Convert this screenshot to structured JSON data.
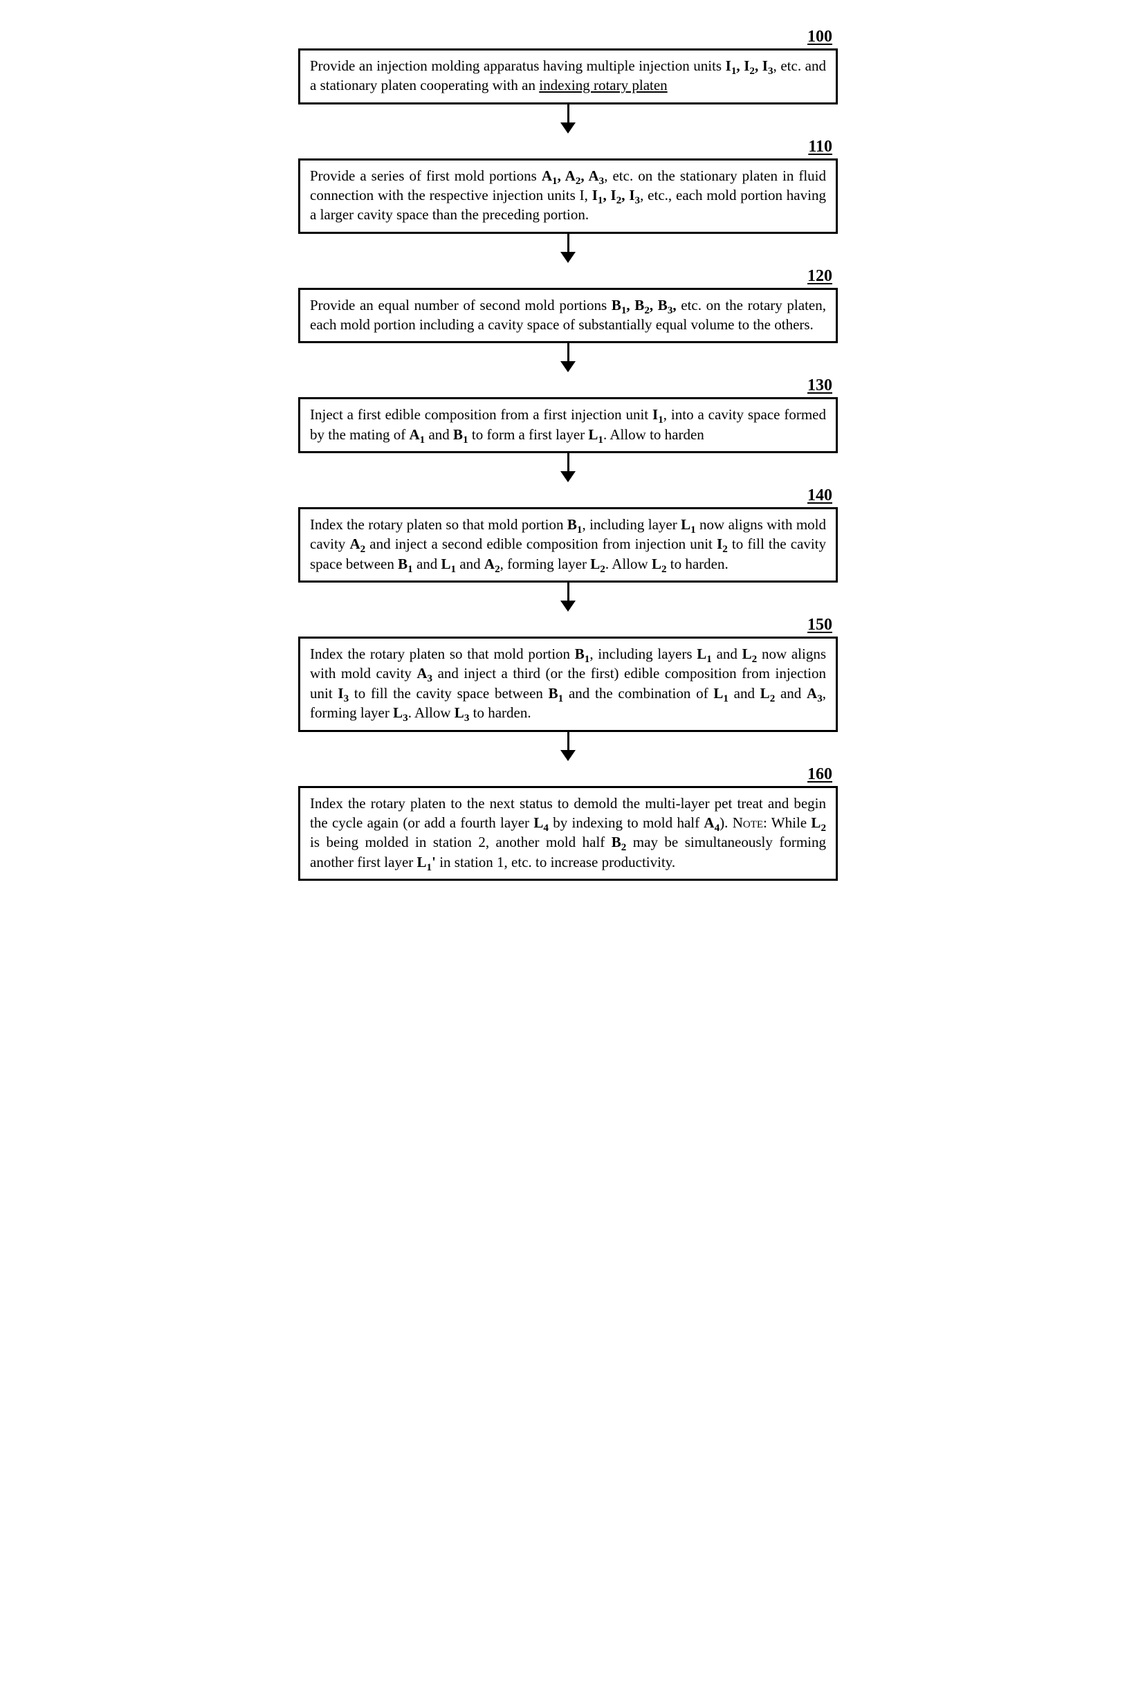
{
  "type": "flowchart",
  "node_border_color": "#000000",
  "node_border_width": 3,
  "background_color": "#ffffff",
  "font_family": "Times New Roman / serif",
  "body_fontsize_pt": 16,
  "label_fontsize_pt": 18,
  "label_weight": "bold",
  "label_underline": true,
  "arrow_color": "#000000",
  "steps": [
    {
      "id": "100",
      "label": "100",
      "html": "Provide an injection molding apparatus having multiple injection units <b>I<sub>1</sub>, I<sub>2</sub>, I<sub>3</sub></b>, etc. and a stationary platen cooperating with an <u>indexing rotary platen</u>"
    },
    {
      "id": "110",
      "label": "110",
      "html": "Provide a series of first mold portions <b>A<sub>1</sub>, A<sub>2</sub>, A<sub>3</sub></b>, etc. on the stationary platen in fluid connection with the respective injection units I, <b>I<sub>1</sub>, I<sub>2</sub>, I<sub>3</sub></b>, etc., each mold portion having a larger cavity space than the preceding portion."
    },
    {
      "id": "120",
      "label": "120",
      "html": "Provide an equal number of second mold portions <b>B<sub>1</sub>, B<sub>2</sub>, B<sub>3</sub>,</b> etc. on the rotary platen, each mold portion including a cavity space of substantially equal volume to the others."
    },
    {
      "id": "130",
      "label": "130",
      "html": "Inject a first edible composition from a first injection unit <b>I<sub>1</sub></b>, into a cavity space formed by the mating of <b>A<sub>1</sub></b> and <b>B<sub>1</sub></b> to form a first layer <b>L<sub>1</sub></b>. Allow to harden"
    },
    {
      "id": "140",
      "label": "140",
      "html": "Index the rotary platen so that mold portion <b>B<sub>1</sub></b>, including layer <b>L<sub>1</sub></b> now aligns with mold cavity <b>A<sub>2</sub></b> and inject a second edible composition from injection unit <b>I<sub>2</sub></b> to fill the cavity space between <b>B<sub>1</sub></b> and <b>L<sub>1</sub></b> and <b>A<sub>2</sub></b>, forming layer <b>L<sub>2</sub></b>. Allow <b>L<sub>2</sub></b> to harden."
    },
    {
      "id": "150",
      "label": "150",
      "html": "Index the rotary platen so that mold portion <b>B<sub>1</sub></b>, including layers <b>L<sub>1</sub></b> and <b>L<sub>2</sub></b> now aligns with mold cavity <b>A<sub>3</sub></b> and inject a third (or the first) edible composition from injection unit <b>I<sub>3</sub></b> to fill the cavity space between <b>B<sub>1</sub></b> and the combination of <b>L<sub>1</sub></b> and <b>L<sub>2</sub></b> and <b>A<sub>3</sub></b>, forming layer <b>L<sub>3</sub></b>. Allow <b>L<sub>3</sub></b> to harden."
    },
    {
      "id": "160",
      "label": "160",
      "html": "Index the rotary platen to the next status to demold the multi-layer pet treat and begin the cycle again (or add a fourth layer <b>L<sub>4</sub></b> by indexing to mold half <b>A<sub>4</sub></b>). <span class=\"sc\">Note</span>: While <b>L<sub>2</sub></b> is being molded in station 2, another mold half <b>B<sub>2</sub></b> may be simultaneously forming another first layer <b>L<sub>1</sub>'</b> in station 1, etc. to increase productivity."
    }
  ]
}
